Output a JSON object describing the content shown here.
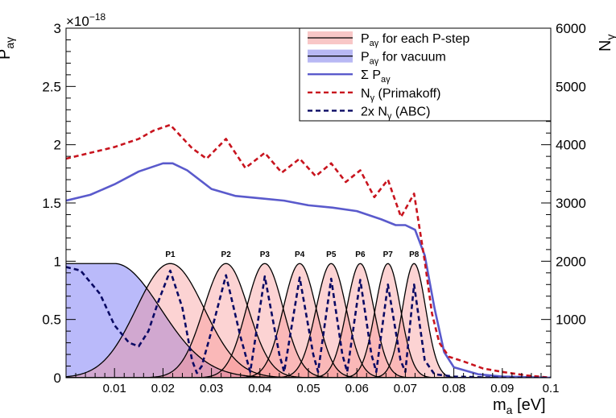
{
  "chart_data": {
    "type": "area",
    "x_axis": {
      "label_main": "m",
      "label_sub": "a",
      "label_unit": " [eV]",
      "range": [
        0,
        0.1
      ],
      "tick_step": 0.01,
      "tick_labels": [
        "0.01",
        "0.02",
        "0.03",
        "0.04",
        "0.05",
        "0.06",
        "0.07",
        "0.08",
        "0.09",
        "0.1"
      ]
    },
    "y_left": {
      "label_main": "P",
      "label_sub": "aγ",
      "range": [
        0,
        3
      ],
      "tick_step": 0.5,
      "tick_labels": [
        "0",
        "0.5",
        "1",
        "1.5",
        "2",
        "2.5",
        "3"
      ],
      "exponent_base": "×10",
      "exponent_power": "−18"
    },
    "y_right": {
      "label_main": "N",
      "label_sub": "γ",
      "range": [
        0,
        6000
      ],
      "tick_labels": [
        "1000",
        "2000",
        "3000",
        "4000",
        "5000",
        "6000"
      ]
    },
    "legend": {
      "position": "top-right",
      "entries": [
        {
          "text_main": "P",
          "text_sub": "aγ",
          "text_rest": " for each P-step",
          "style": "fill-red"
        },
        {
          "text_main": "P",
          "text_sub": "aγ",
          "text_rest": " for vacuum",
          "style": "fill-blue"
        },
        {
          "text_main": "Σ P",
          "text_sub": "aγ",
          "text_rest": "",
          "style": "line-blue"
        },
        {
          "text_main": "N",
          "text_sub": "γ",
          "text_rest": " (Primakoff)",
          "style": "dash-red"
        },
        {
          "text_main": "2x N",
          "text_sub": "γ",
          "text_rest": " (ABC)",
          "style": "dash-navy"
        }
      ]
    },
    "steps": [
      {
        "name": "P1",
        "center": 0.0215,
        "sigma": 0.007
      },
      {
        "name": "P2",
        "center": 0.033,
        "sigma": 0.0046
      },
      {
        "name": "P3",
        "center": 0.041,
        "sigma": 0.0038
      },
      {
        "name": "P4",
        "center": 0.0482,
        "sigma": 0.0034
      },
      {
        "name": "P5",
        "center": 0.0547,
        "sigma": 0.0031
      },
      {
        "name": "P6",
        "center": 0.0607,
        "sigma": 0.0028
      },
      {
        "name": "P7",
        "center": 0.0664,
        "sigma": 0.0026
      },
      {
        "name": "P8",
        "center": 0.0718,
        "sigma": 0.0024
      }
    ],
    "step_peak": 0.98,
    "vacuum": {
      "flat_value": 0.98,
      "flat_until": 0.01,
      "sigma": 0.0095
    },
    "sum_p": {
      "x": [
        0.0,
        0.005,
        0.01,
        0.015,
        0.02,
        0.022,
        0.025,
        0.03,
        0.035,
        0.04,
        0.045,
        0.05,
        0.055,
        0.06,
        0.065,
        0.068,
        0.07,
        0.072,
        0.074,
        0.076,
        0.078,
        0.08,
        0.085,
        0.09,
        0.1
      ],
      "y": [
        1.52,
        1.57,
        1.66,
        1.77,
        1.84,
        1.84,
        1.78,
        1.62,
        1.56,
        1.54,
        1.52,
        1.48,
        1.46,
        1.43,
        1.36,
        1.31,
        1.31,
        1.27,
        1.05,
        0.6,
        0.22,
        0.09,
        0.03,
        0.01,
        0.0
      ]
    },
    "primakoff": {
      "x": [
        0.0,
        0.005,
        0.01,
        0.015,
        0.018,
        0.0215,
        0.026,
        0.029,
        0.033,
        0.037,
        0.041,
        0.0445,
        0.0482,
        0.0515,
        0.0547,
        0.0577,
        0.0607,
        0.0636,
        0.0664,
        0.0691,
        0.0718,
        0.074,
        0.0755,
        0.077,
        0.079,
        0.082,
        0.086,
        0.09,
        0.095,
        0.1
      ],
      "y": [
        1.88,
        1.93,
        1.98,
        2.05,
        2.12,
        2.17,
        1.97,
        1.88,
        2.05,
        1.8,
        1.93,
        1.76,
        1.88,
        1.73,
        1.84,
        1.68,
        1.78,
        1.55,
        1.7,
        1.38,
        1.58,
        1.0,
        0.55,
        0.3,
        0.18,
        0.14,
        0.08,
        0.05,
        0.02,
        0.0
      ]
    },
    "abc": {
      "x": [
        0.0,
        0.003,
        0.007,
        0.01,
        0.013,
        0.015,
        0.017,
        0.019,
        0.0215,
        0.024,
        0.026,
        0.027,
        0.028,
        0.03,
        0.033,
        0.036,
        0.038,
        0.041,
        0.044,
        0.045,
        0.0482,
        0.051,
        0.052,
        0.0547,
        0.057,
        0.058,
        0.0607,
        0.063,
        0.064,
        0.0664,
        0.069,
        0.07,
        0.0718,
        0.074,
        0.076,
        0.08,
        0.09,
        0.1
      ],
      "y": [
        0.95,
        0.92,
        0.72,
        0.45,
        0.3,
        0.27,
        0.4,
        0.65,
        0.92,
        0.6,
        0.15,
        0.04,
        0.1,
        0.4,
        0.88,
        0.35,
        0.05,
        0.87,
        0.2,
        0.05,
        0.86,
        0.2,
        0.05,
        0.85,
        0.2,
        0.05,
        0.84,
        0.2,
        0.05,
        0.8,
        0.15,
        0.05,
        0.8,
        0.15,
        0.03,
        0.01,
        0.0,
        0.0
      ]
    },
    "colors": {
      "red_line": "#c8141e",
      "blue_line": "#5a5acc",
      "navy_line": "#0a0a64",
      "red_fill": "rgba(246,140,140,0.38)",
      "blue_fill": "rgba(140,140,246,0.60)",
      "red_legend_fill": "#f8c7c7",
      "blue_legend_fill": "#b8b8f4"
    }
  }
}
